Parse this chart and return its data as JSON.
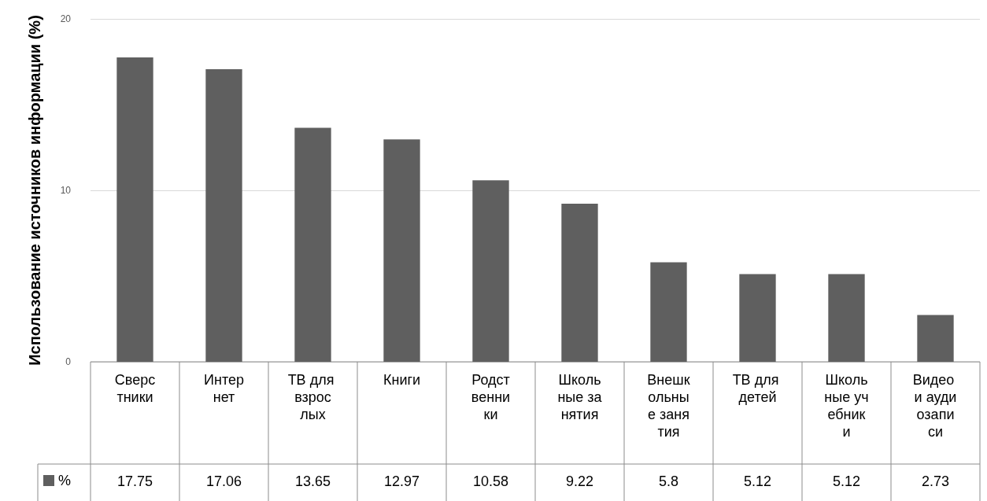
{
  "chart_data": {
    "type": "bar",
    "ylabel": "Использование источников информации (%)",
    "categories": [
      "Сверстники",
      "Интернет",
      "ТВ для взрослых",
      "Книги",
      "Родственники",
      "Школьные занятия",
      "Внешкольные занятия",
      "ТВ для детей",
      "Школьные учебники",
      "Видео и аудиозаписи"
    ],
    "series": [
      {
        "name": "%",
        "color": "#5f5f5f",
        "values": [
          17.75,
          17.06,
          13.65,
          12.97,
          10.58,
          9.22,
          5.8,
          5.12,
          5.12,
          2.73
        ]
      }
    ],
    "ylim": [
      0,
      20
    ],
    "yticks": [
      0,
      10,
      20
    ],
    "grid": "y",
    "legend": "bottom left",
    "data_labels": true
  }
}
